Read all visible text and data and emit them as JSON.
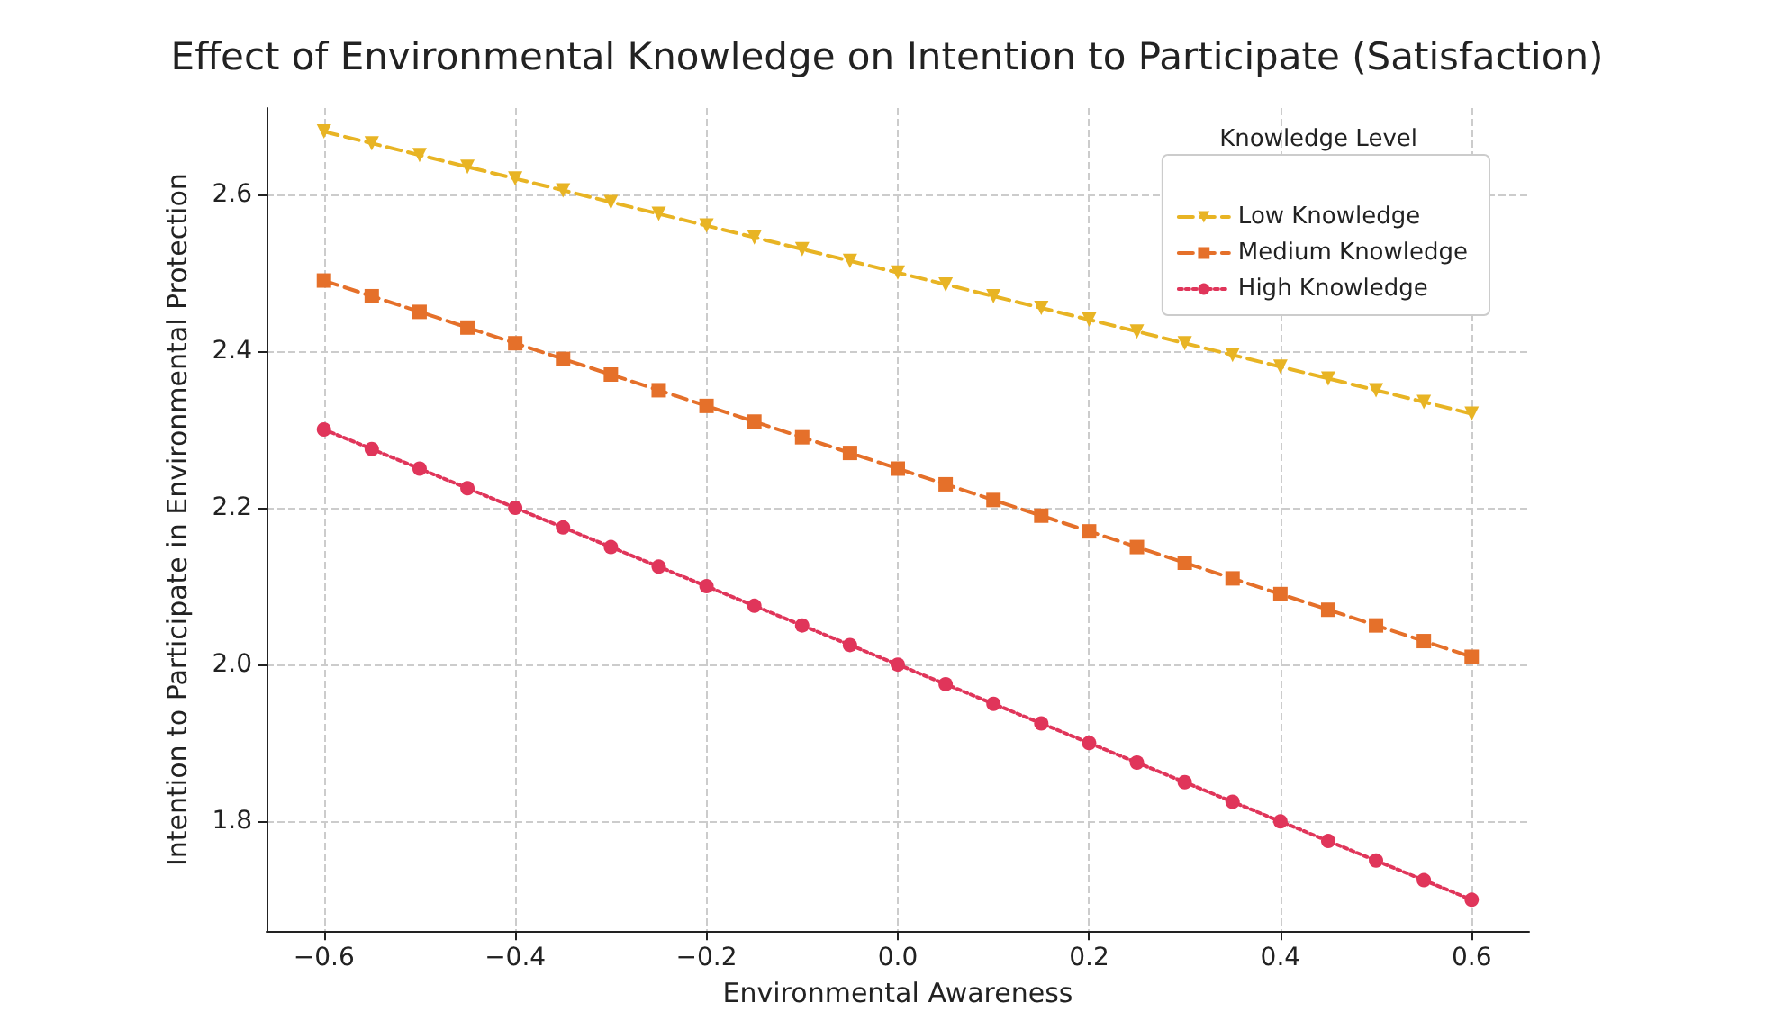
{
  "chart_data": {
    "type": "line",
    "title": "Effect of Environmental Knowledge on Intention to Participate (Satisfaction)",
    "xlabel": "Environmental Awareness",
    "ylabel": "Intention to Participate in Environmental Protection",
    "legend_title": "Knowledge Level",
    "legend": "top right",
    "grid": true,
    "x": [
      -0.6,
      -0.55,
      -0.5,
      -0.45,
      -0.4,
      -0.35,
      -0.3,
      -0.25,
      -0.2,
      -0.15,
      -0.1,
      -0.05,
      0,
      0.05,
      0.1,
      0.15,
      0.2,
      0.25,
      0.3,
      0.35,
      0.4,
      0.45,
      0.5,
      0.55,
      0.6
    ],
    "xlim": [
      -0.66,
      0.66
    ],
    "xticks": [
      {
        "value": -0.6,
        "label": "−0.6"
      },
      {
        "value": -0.4,
        "label": "−0.4"
      },
      {
        "value": -0.2,
        "label": "−0.2"
      },
      {
        "value": 0,
        "label": "0.0"
      },
      {
        "value": 0.2,
        "label": "0.2"
      },
      {
        "value": 0.4,
        "label": "0.4"
      },
      {
        "value": 0.6,
        "label": "0.6"
      }
    ],
    "ylim": [
      1.66,
      2.71
    ],
    "yticks": [
      {
        "value": 1.8,
        "label": "1.8"
      },
      {
        "value": 2.0,
        "label": "2.0"
      },
      {
        "value": 2.2,
        "label": "2.2"
      },
      {
        "value": 2.4,
        "label": "2.4"
      },
      {
        "value": 2.6,
        "label": "2.6"
      }
    ],
    "series": [
      {
        "name": "Low Knowledge",
        "color": "#e8b424",
        "marker": "triangle",
        "line_style": "dashed",
        "values": [
          2.68,
          2.665,
          2.65,
          2.635,
          2.62,
          2.605,
          2.59,
          2.575,
          2.56,
          2.545,
          2.53,
          2.515,
          2.5,
          2.485,
          2.47,
          2.455,
          2.44,
          2.425,
          2.41,
          2.395,
          2.38,
          2.365,
          2.35,
          2.335,
          2.32
        ]
      },
      {
        "name": "Medium Knowledge",
        "color": "#e5702a",
        "marker": "square",
        "line_style": "dashed",
        "values": [
          2.49,
          2.47,
          2.45,
          2.43,
          2.41,
          2.39,
          2.37,
          2.35,
          2.33,
          2.31,
          2.29,
          2.27,
          2.25,
          2.23,
          2.21,
          2.19,
          2.17,
          2.15,
          2.13,
          2.11,
          2.09,
          2.07,
          2.05,
          2.03,
          2.01
        ]
      },
      {
        "name": "High Knowledge",
        "color": "#e0355a",
        "marker": "circle",
        "line_style": "dotted",
        "values": [
          2.3,
          2.275,
          2.25,
          2.225,
          2.2,
          2.175,
          2.15,
          2.125,
          2.1,
          2.075,
          2.05,
          2.025,
          2.0,
          1.975,
          1.95,
          1.925,
          1.9,
          1.875,
          1.85,
          1.825,
          1.8,
          1.775,
          1.75,
          1.725,
          1.7
        ]
      }
    ]
  }
}
